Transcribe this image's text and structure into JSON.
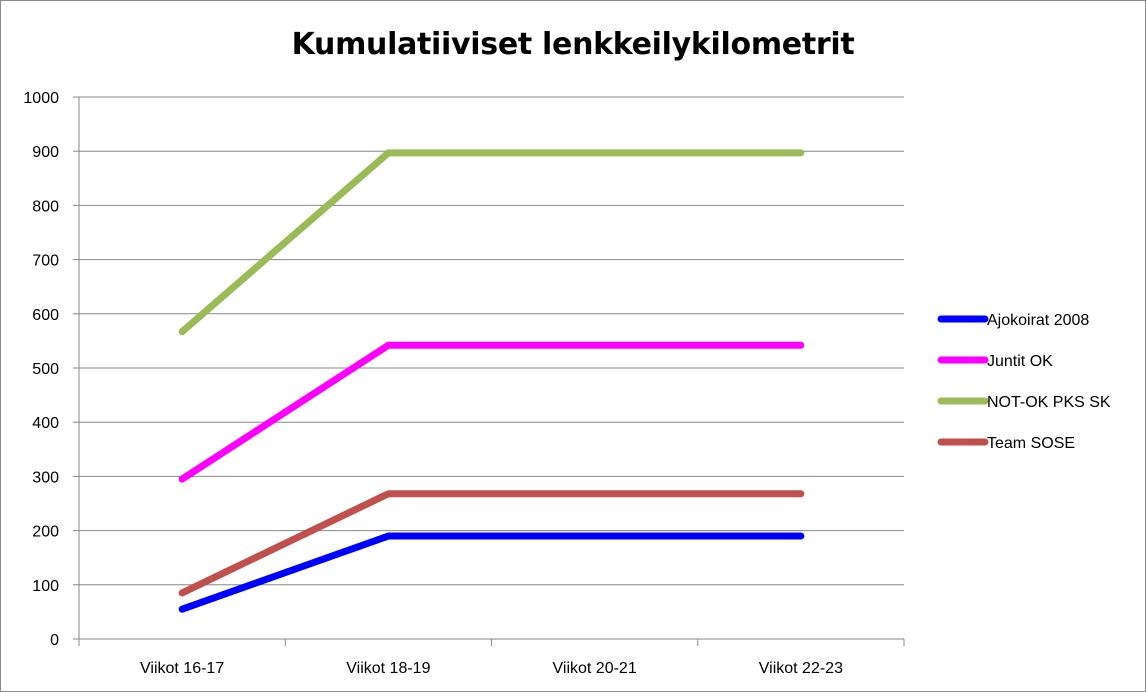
{
  "chart_data": {
    "type": "line",
    "title": "Kumulatiiviset lenkkeilykilometrit",
    "xlabel": "",
    "ylabel": "",
    "categories": [
      "Viikot 16-17",
      "Viikot 18-19",
      "Viikot 20-21",
      "Viikot 22-23"
    ],
    "ylim": [
      0,
      1000
    ],
    "yticks": [
      0,
      100,
      200,
      300,
      400,
      500,
      600,
      700,
      800,
      900,
      1000
    ],
    "grid": true,
    "legend_position": "right",
    "series": [
      {
        "name": "Ajokoirat 2008",
        "color": "#0000ff",
        "values": [
          55,
          190,
          190,
          190
        ]
      },
      {
        "name": "Juntit OK",
        "color": "#ff00ff",
        "values": [
          295,
          542,
          542,
          542
        ]
      },
      {
        "name": "NOT-OK PKS SK",
        "color": "#9bbb59",
        "values": [
          567,
          897,
          897,
          897
        ]
      },
      {
        "name": "Team SOSE",
        "color": "#c0504d",
        "values": [
          85,
          268,
          268,
          268
        ]
      }
    ]
  }
}
